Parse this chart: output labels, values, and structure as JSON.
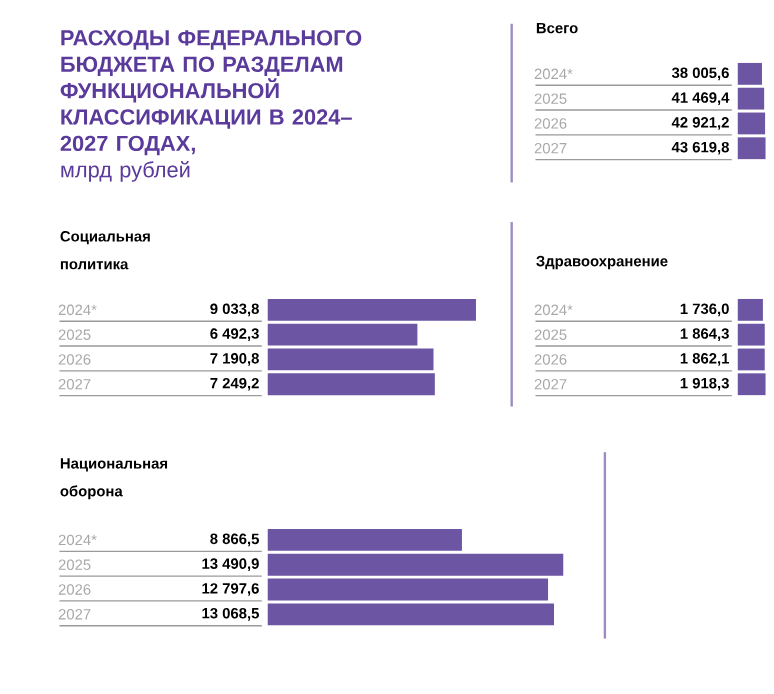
{
  "chart_data": [
    {
      "type": "other",
      "title": "РАСХОДЫ ФЕДЕРАЛЬНОГО БЮДЖЕТА ПО РАЗДЕЛАМ ФУНКЦИОНАЛЬНОЙ КЛАССИФИКАЦИИ В 2024–2027 ГОДАХ,",
      "subtitle": "млрд рублей"
    },
    {
      "type": "bar",
      "orientation": "horizontal",
      "title": "Всего",
      "categories": [
        "2024*",
        "2025",
        "2026",
        "2027"
      ],
      "values": [
        38005.6,
        41469.4,
        42921.2,
        43619.8
      ],
      "value_labels": [
        "38 005,6",
        "41 469,4",
        "42 921,2",
        "43 619,8"
      ],
      "color": "#6c55a3",
      "tick_labels": "y"
    },
    {
      "type": "bar",
      "orientation": "horizontal",
      "title": "Социальная политика",
      "categories": [
        "2024*",
        "2025",
        "2026",
        "2027"
      ],
      "values": [
        9033.8,
        6492.3,
        7190.8,
        7249.2
      ],
      "value_labels": [
        "9 033,8",
        "6 492,3",
        "7 190,8",
        "7 249,2"
      ],
      "color": "#6c55a3",
      "tick_labels": "y"
    },
    {
      "type": "bar",
      "orientation": "horizontal",
      "title": "Здравоохранение",
      "categories": [
        "2024*",
        "2025",
        "2026",
        "2027"
      ],
      "values": [
        1736.0,
        1864.3,
        1862.1,
        1918.3
      ],
      "value_labels": [
        "1 736,0",
        "1 864,3",
        "1 862,1",
        "1 918,3"
      ],
      "color": "#6c55a3",
      "tick_labels": "y"
    },
    {
      "type": "bar",
      "orientation": "horizontal",
      "title": "Национальная оборона",
      "categories": [
        "2024*",
        "2025",
        "2026",
        "2027"
      ],
      "values": [
        8866.5,
        13490.9,
        12797.6,
        13068.5
      ],
      "value_labels": [
        "8 866,5",
        "13 490,9",
        "12 797,6",
        "13 068,5"
      ],
      "color": "#6c55a3",
      "tick_labels": "y"
    }
  ]
}
